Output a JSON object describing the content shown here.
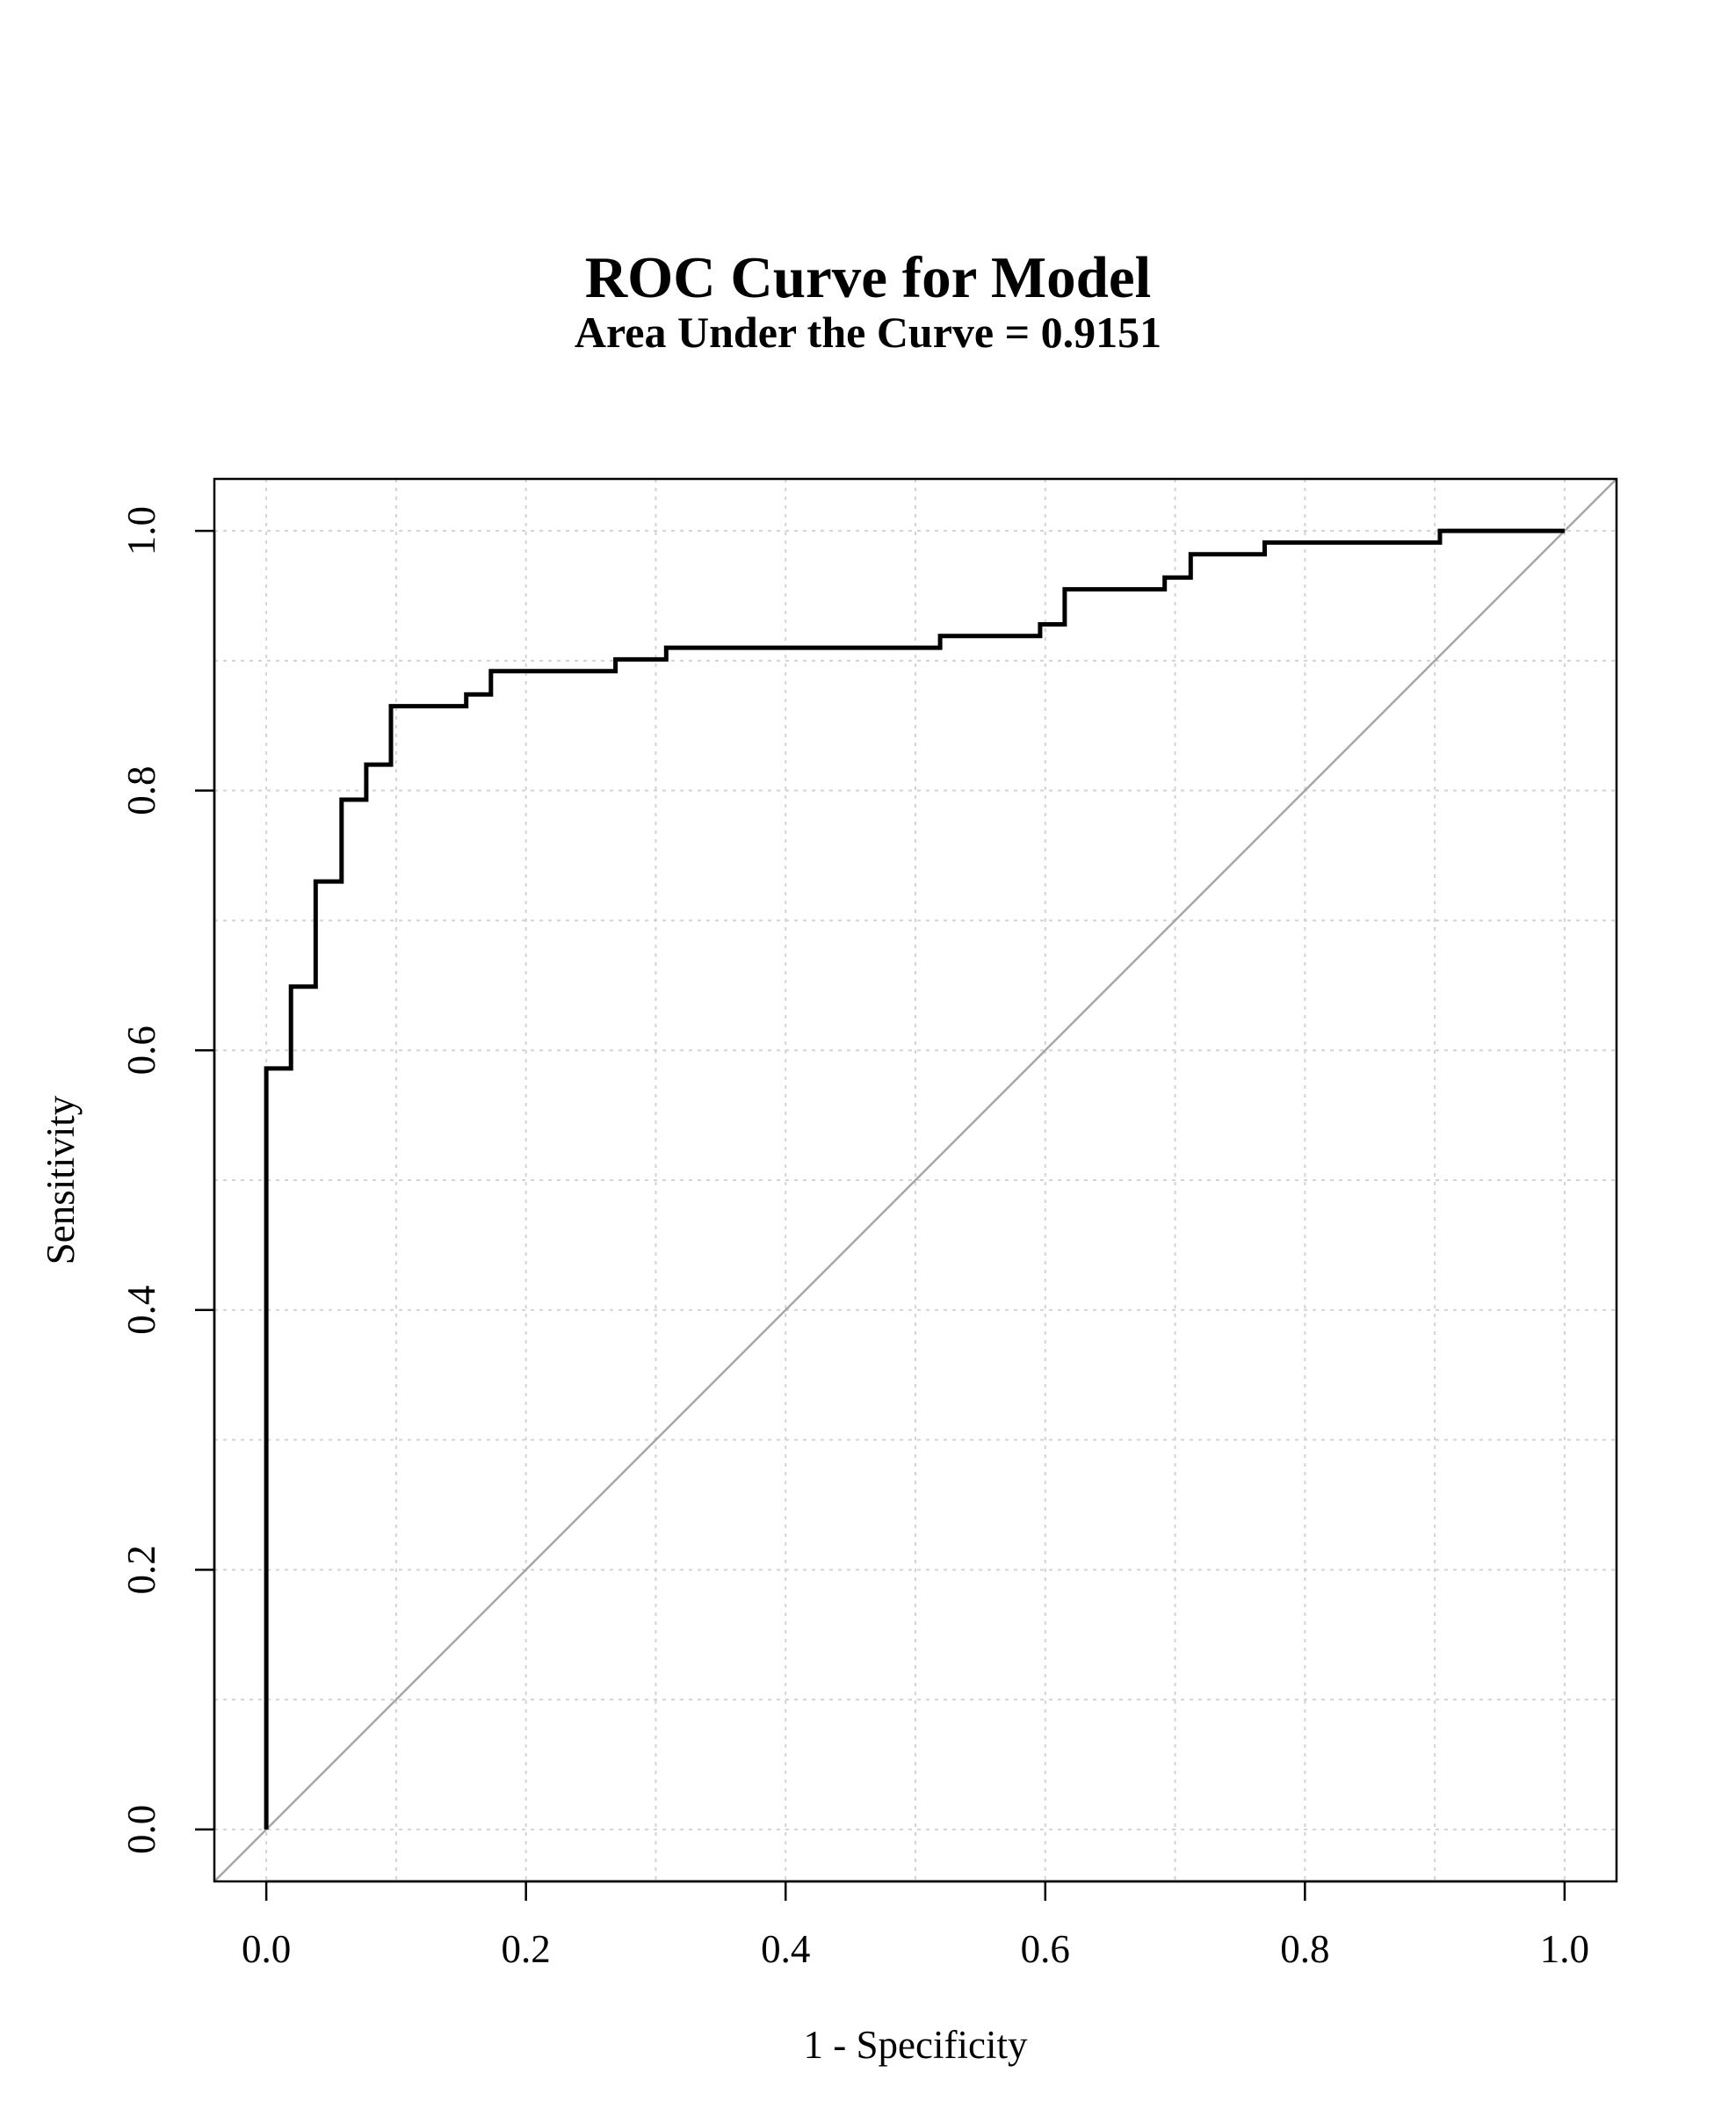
{
  "chart_data": {
    "type": "line",
    "title": "ROC Curve for Model",
    "subtitle": "Area Under the Curve =  0.9151",
    "xlabel": "1 - Specificity",
    "ylabel": "Sensitivity",
    "xlim": [
      -0.04,
      1.04
    ],
    "ylim": [
      -0.04,
      1.04
    ],
    "xticks": [
      "0.0",
      "0.2",
      "0.4",
      "0.6",
      "0.8",
      "1.0"
    ],
    "yticks": [
      "0.0",
      "0.2",
      "0.4",
      "0.6",
      "0.8",
      "1.0"
    ],
    "grid": true,
    "grid_step": 0.1,
    "reference_line": {
      "x": [
        -0.04,
        1.04
      ],
      "y": [
        -0.04,
        1.04
      ],
      "color": "#a6a6a6"
    },
    "series": [
      {
        "color": "#000000",
        "x": [
          0.0,
          0.0,
          0.019,
          0.019,
          0.038,
          0.038,
          0.058,
          0.058,
          0.077,
          0.077,
          0.096,
          0.096,
          0.154,
          0.154,
          0.173,
          0.173,
          0.269,
          0.269,
          0.308,
          0.308,
          0.519,
          0.519,
          0.596,
          0.596,
          0.615,
          0.615,
          0.692,
          0.692,
          0.712,
          0.712,
          0.769,
          0.769,
          0.904,
          0.904,
          1.0
        ],
        "y": [
          0.0,
          0.586,
          0.586,
          0.649,
          0.649,
          0.73,
          0.73,
          0.793,
          0.793,
          0.82,
          0.82,
          0.865,
          0.865,
          0.874,
          0.874,
          0.892,
          0.892,
          0.901,
          0.901,
          0.91,
          0.91,
          0.919,
          0.919,
          0.928,
          0.928,
          0.955,
          0.955,
          0.964,
          0.964,
          0.982,
          0.982,
          0.991,
          0.991,
          1.0,
          1.0
        ]
      }
    ]
  }
}
